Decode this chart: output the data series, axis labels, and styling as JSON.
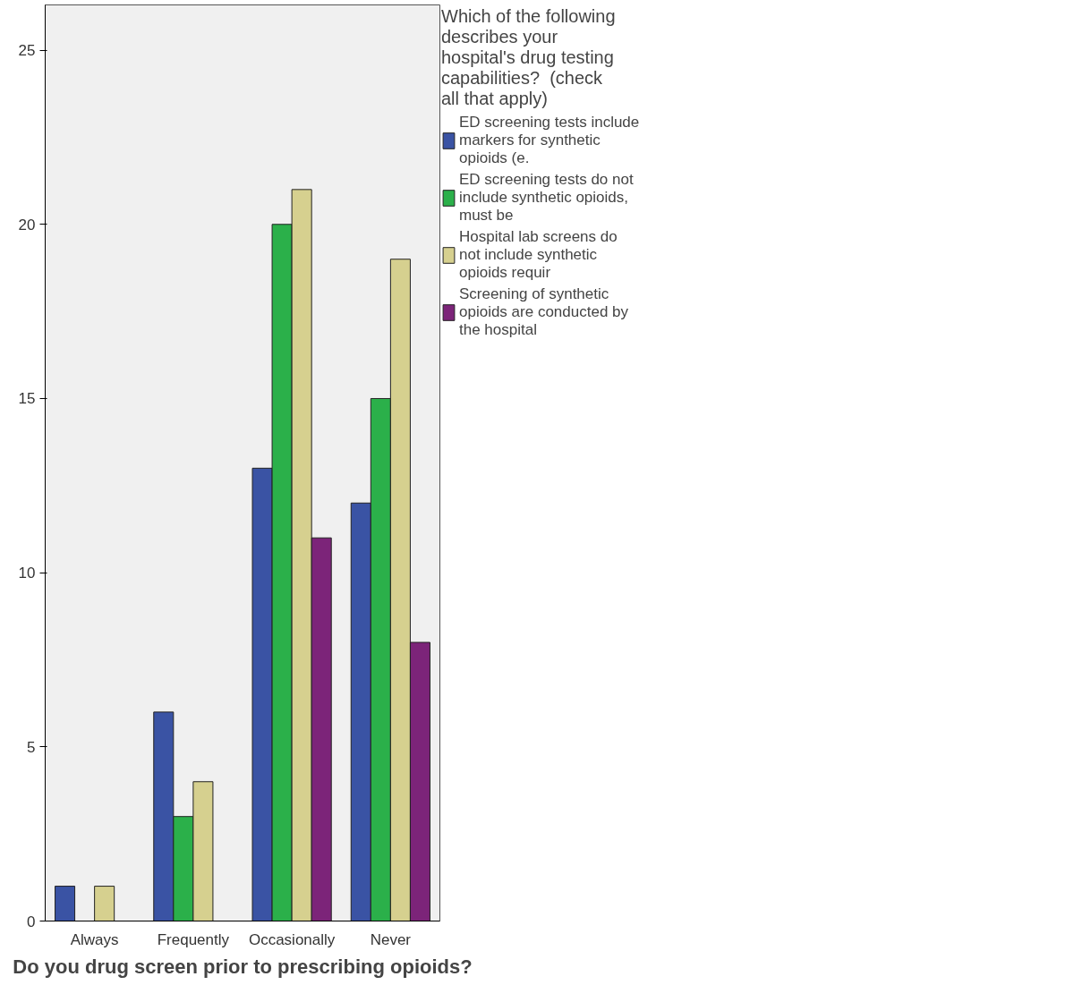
{
  "chart_data": {
    "type": "bar",
    "xlabel": "Do you drug screen prior to prescribing opioids?",
    "legend_title": "Which of the following describes your hospital's drug testing capabilities?  (check all that apply)",
    "categories": [
      "Always",
      "Frequently",
      "Occasionally",
      "Never"
    ],
    "series": [
      {
        "name": "ED screening tests include markers for synthetic opioids (e.",
        "color": "#3a53a4",
        "values": [
          1,
          6,
          13,
          12
        ]
      },
      {
        "name": "ED screening tests do not include synthetic opioids, must be",
        "color": "#2bb04a",
        "values": [
          null,
          3,
          20,
          15
        ]
      },
      {
        "name": "Hospital lab screens do not include synthetic opioids requir",
        "color": "#d6d08f",
        "values": [
          1,
          4,
          21,
          19
        ]
      },
      {
        "name": "Screening of synthetic opioids are conducted by the hospital",
        "color": "#7c2479",
        "values": [
          null,
          null,
          11,
          8
        ]
      }
    ],
    "ylim": [
      0,
      26.3
    ],
    "yticks": [
      0,
      5,
      10,
      15,
      20,
      25
    ],
    "grid": false,
    "legend": "right"
  }
}
